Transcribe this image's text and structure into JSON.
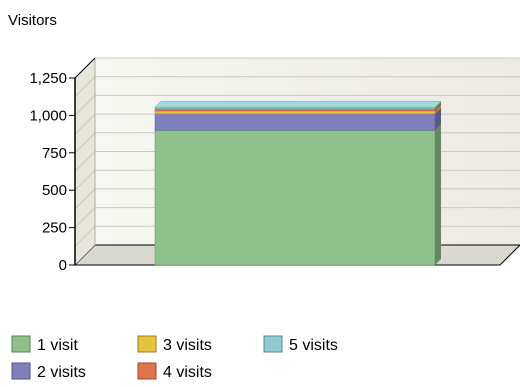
{
  "chart_data": {
    "type": "bar",
    "stacked": true,
    "three_d": true,
    "title": "",
    "xlabel": "",
    "ylabel": "Visitors",
    "ylim": [
      0,
      1250
    ],
    "yticks": [
      0,
      250,
      500,
      750,
      1000,
      1250
    ],
    "ytick_labels": [
      "0",
      "250",
      "500",
      "750",
      "1,000",
      "1,250"
    ],
    "grid": true,
    "legend_position": "bottom",
    "categories": [
      ""
    ],
    "series": [
      {
        "name": "1 visit",
        "values": [
          900
        ],
        "color": "#8dc28d"
      },
      {
        "name": "2 visits",
        "values": [
          110
        ],
        "color": "#7f7fbe"
      },
      {
        "name": "3 visits",
        "values": [
          20
        ],
        "color": "#e8c23a"
      },
      {
        "name": "4 visits",
        "values": [
          15
        ],
        "color": "#e2734a"
      },
      {
        "name": "5 visits",
        "values": [
          10
        ],
        "color": "#8fcdd6"
      }
    ]
  }
}
